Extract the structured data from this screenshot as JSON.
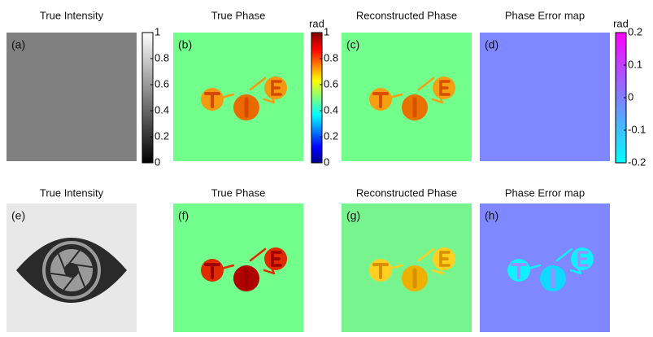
{
  "panels": [
    {
      "title": "True Intensity",
      "label": "(a)"
    },
    {
      "title": "True Phase",
      "label": "(b)"
    },
    {
      "title": "Reconstructed Phase",
      "label": "(c)"
    },
    {
      "title": "Phase Error map",
      "label": "(d)"
    },
    {
      "title": "True Intensity",
      "label": "(e)"
    },
    {
      "title": "True Phase",
      "label": "(f)"
    },
    {
      "title": "Reconstructed Phase",
      "label": "(g)"
    },
    {
      "title": "Phase Error map",
      "label": "(h)"
    }
  ],
  "colorbars": [
    {
      "lim": [
        0,
        1
      ],
      "ticks": [
        0,
        0.2,
        0.4,
        0.6,
        0.8,
        1
      ]
    },
    {
      "unit": "rad",
      "lim": [
        0,
        1
      ],
      "ticks": [
        0,
        0.2,
        0.4,
        0.6,
        0.8,
        1
      ]
    },
    {
      "unit": "rad",
      "lim": [
        -0.2,
        0.2
      ],
      "ticks": [
        -0.2,
        -0.1,
        0,
        0.1,
        0.2
      ]
    }
  ]
}
